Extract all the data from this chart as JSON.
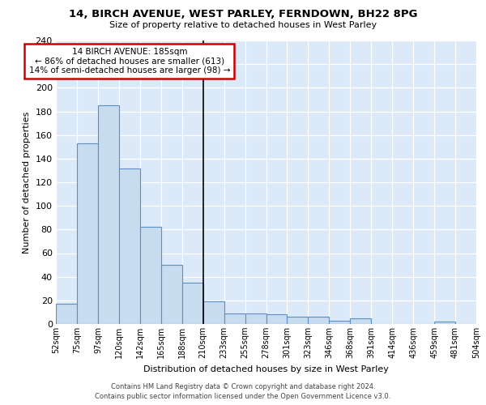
{
  "title": "14, BIRCH AVENUE, WEST PARLEY, FERNDOWN, BH22 8PG",
  "subtitle": "Size of property relative to detached houses in West Parley",
  "xlabel": "Distribution of detached houses by size in West Parley",
  "ylabel": "Number of detached properties",
  "bar_values": [
    17,
    153,
    185,
    132,
    82,
    50,
    35,
    19,
    9,
    9,
    8,
    6,
    6,
    3,
    5,
    0,
    0,
    0,
    2,
    0
  ],
  "bar_labels": [
    "52sqm",
    "75sqm",
    "97sqm",
    "120sqm",
    "142sqm",
    "165sqm",
    "188sqm",
    "210sqm",
    "233sqm",
    "255sqm",
    "278sqm",
    "301sqm",
    "323sqm",
    "346sqm",
    "368sqm",
    "391sqm",
    "414sqm",
    "436sqm",
    "459sqm",
    "481sqm",
    "504sqm"
  ],
  "ylim": [
    0,
    240
  ],
  "yticks": [
    0,
    20,
    40,
    60,
    80,
    100,
    120,
    140,
    160,
    180,
    200,
    220,
    240
  ],
  "bar_color": "#c8dcf0",
  "bar_edge_color": "#5b8ec4",
  "property_line_x": 7,
  "annotation_line1": "14 BIRCH AVENUE: 185sqm",
  "annotation_line2": "← 86% of detached houses are smaller (613)",
  "annotation_line3": "14% of semi-detached houses are larger (98) →",
  "annotation_box_facecolor": "#ffffff",
  "annotation_box_edgecolor": "#cc0000",
  "footer_line1": "Contains HM Land Registry data © Crown copyright and database right 2024.",
  "footer_line2": "Contains public sector information licensed under the Open Government Licence v3.0.",
  "plot_bg_color": "#dce9f8",
  "figure_bg": "#ffffff"
}
